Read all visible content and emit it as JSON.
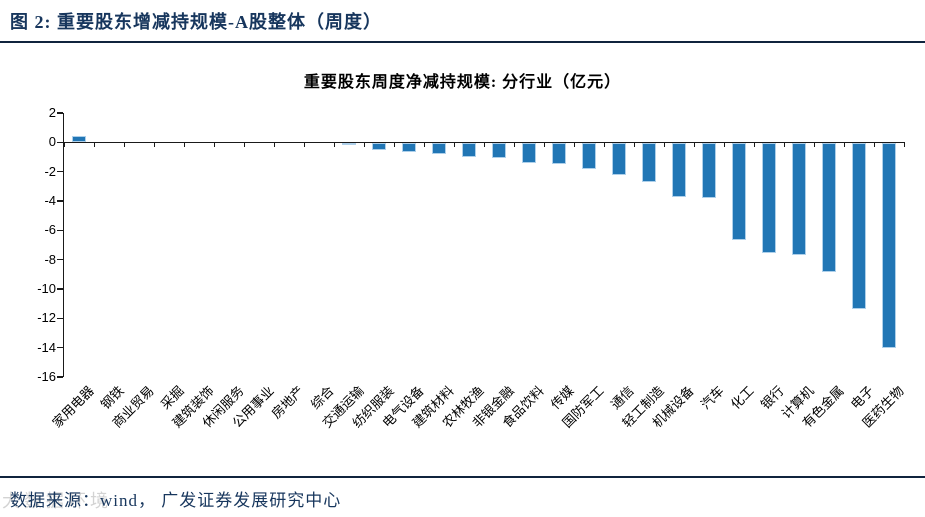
{
  "header": {
    "title": "图 2:  重要股东增减持规模-A股整体（周度）"
  },
  "footer": {
    "source": "数据来源：wind， 广发证券发展研究中心",
    "watermark": "大数据环境"
  },
  "chart_data": {
    "type": "bar",
    "title": "重要股东周度净减持规模:  分行业（亿元）",
    "xlabel": "",
    "ylabel": "",
    "unit": "亿元",
    "ylim": [
      -16,
      2
    ],
    "yticks": [
      2,
      0,
      -2,
      -4,
      -6,
      -8,
      -10,
      -12,
      -14,
      -16
    ],
    "grid": "off",
    "legend": "none",
    "bar_color": "#2176b5",
    "bar_border_color": "#aed0ea",
    "axis_color": "#1a1a1a",
    "categories": [
      "家用电器",
      "钢铁",
      "商业贸易",
      "采掘",
      "建筑装饰",
      "休闲服务",
      "公用事业",
      "房地产",
      "综合",
      "交通运输",
      "纺织服装",
      "电气设备",
      "建筑材料",
      "农林牧渔",
      "非银金融",
      "食品饮料",
      "传媒",
      "国防军工",
      "通信",
      "轻工制造",
      "机械设备",
      "汽车",
      "化工",
      "银行",
      "计算机",
      "有色金属",
      "电子",
      "医药生物"
    ],
    "values": [
      0.45,
      0,
      0,
      0,
      0,
      0,
      0,
      0,
      0,
      -0.05,
      -0.45,
      -0.6,
      -0.75,
      -0.95,
      -1.0,
      -1.35,
      -1.4,
      -1.75,
      -2.2,
      -2.65,
      -3.65,
      -3.75,
      -6.6,
      -7.5,
      -7.6,
      -8.8,
      -11.3,
      -14.0
    ]
  }
}
